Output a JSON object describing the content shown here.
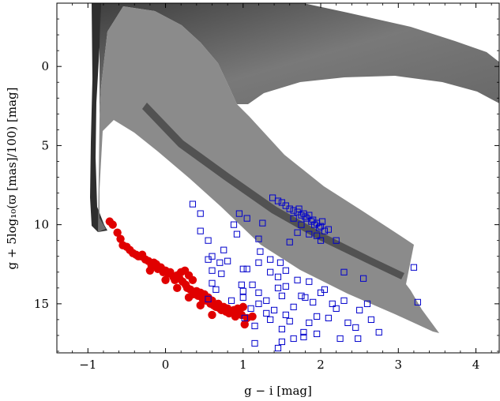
{
  "chart_data": {
    "type": "scatter",
    "xlabel": "g − i [mag]",
    "ylabel": "g + 5log₁₀(ϖ [mas]/100) [mag]",
    "xlim": [
      -1.4,
      4.3
    ],
    "ylim": [
      18.1,
      -4.0
    ],
    "y_inverted": true,
    "xticks": [
      -1,
      0,
      1,
      2,
      3,
      4
    ],
    "xtick_labels": [
      "−1",
      "0",
      "1",
      "2",
      "3",
      "4"
    ],
    "yticks": [
      0,
      5,
      10,
      15
    ],
    "ytick_labels": [
      "0",
      "5",
      "10",
      "15"
    ],
    "grid": false,
    "legend": "none",
    "colors": {
      "red_points": "#e00000",
      "blue_squares": "#0000cc",
      "background_band": "#555555"
    },
    "series": [
      {
        "marker": "filled-circle",
        "points": [
          [
            -0.72,
            9.8
          ],
          [
            -0.68,
            10.0
          ],
          [
            -0.62,
            10.5
          ],
          [
            -0.58,
            10.9
          ],
          [
            -0.55,
            11.3
          ],
          [
            -0.5,
            11.4
          ],
          [
            -0.46,
            11.6
          ],
          [
            -0.42,
            11.8
          ],
          [
            -0.38,
            11.9
          ],
          [
            -0.35,
            12.0
          ],
          [
            -0.32,
            12.0
          ],
          [
            -0.3,
            11.9
          ],
          [
            -0.26,
            12.2
          ],
          [
            -0.22,
            12.3
          ],
          [
            -0.18,
            12.6
          ],
          [
            -0.15,
            12.4
          ],
          [
            -0.12,
            12.5
          ],
          [
            -0.1,
            12.8
          ],
          [
            -0.06,
            12.7
          ],
          [
            -0.03,
            13.0
          ],
          [
            0.0,
            12.9
          ],
          [
            0.03,
            13.1
          ],
          [
            0.06,
            13.0
          ],
          [
            0.1,
            13.3
          ],
          [
            0.12,
            13.5
          ],
          [
            0.15,
            13.2
          ],
          [
            0.18,
            13.4
          ],
          [
            0.2,
            13.0
          ],
          [
            0.22,
            13.6
          ],
          [
            0.25,
            12.9
          ],
          [
            0.26,
            13.8
          ],
          [
            0.28,
            14.0
          ],
          [
            0.3,
            13.2
          ],
          [
            0.32,
            14.1
          ],
          [
            0.35,
            13.5
          ],
          [
            0.36,
            14.4
          ],
          [
            0.4,
            14.2
          ],
          [
            0.42,
            14.5
          ],
          [
            0.45,
            14.3
          ],
          [
            0.48,
            14.7
          ],
          [
            0.5,
            14.4
          ],
          [
            0.52,
            14.8
          ],
          [
            0.55,
            14.6
          ],
          [
            0.58,
            15.0
          ],
          [
            0.6,
            14.8
          ],
          [
            0.62,
            15.1
          ],
          [
            0.65,
            15.2
          ],
          [
            0.68,
            15.0
          ],
          [
            0.7,
            15.3
          ],
          [
            0.72,
            15.4
          ],
          [
            0.75,
            15.2
          ],
          [
            0.78,
            15.5
          ],
          [
            0.8,
            15.3
          ],
          [
            0.82,
            15.6
          ],
          [
            0.85,
            15.5
          ],
          [
            0.88,
            15.4
          ],
          [
            0.9,
            15.8
          ],
          [
            0.93,
            15.3
          ],
          [
            0.95,
            15.6
          ],
          [
            0.98,
            15.7
          ],
          [
            1.0,
            15.2
          ],
          [
            1.02,
            16.3
          ],
          [
            1.05,
            15.9
          ],
          [
            1.12,
            15.8
          ],
          [
            0.6,
            15.7
          ],
          [
            0.45,
            15.1
          ],
          [
            0.3,
            14.6
          ],
          [
            0.15,
            14.0
          ],
          [
            0.0,
            13.5
          ],
          [
            -0.2,
            12.9
          ]
        ]
      },
      {
        "marker": "open-square",
        "points": [
          [
            1.38,
            8.3
          ],
          [
            1.45,
            8.5
          ],
          [
            1.5,
            8.6
          ],
          [
            1.55,
            8.8
          ],
          [
            1.6,
            9.0
          ],
          [
            1.65,
            9.1
          ],
          [
            1.7,
            9.2
          ],
          [
            1.72,
            9.0
          ],
          [
            1.75,
            9.4
          ],
          [
            1.78,
            9.3
          ],
          [
            1.8,
            9.5
          ],
          [
            1.82,
            9.6
          ],
          [
            1.85,
            9.4
          ],
          [
            1.88,
            9.8
          ],
          [
            1.9,
            9.7
          ],
          [
            1.92,
            10.0
          ],
          [
            1.95,
            9.9
          ],
          [
            1.98,
            10.2
          ],
          [
            2.0,
            10.1
          ],
          [
            2.02,
            9.8
          ],
          [
            2.05,
            10.4
          ],
          [
            1.7,
            10.5
          ],
          [
            1.85,
            10.6
          ],
          [
            2.1,
            10.3
          ],
          [
            1.65,
            9.6
          ],
          [
            1.95,
            10.7
          ],
          [
            1.6,
            11.1
          ],
          [
            2.0,
            11.0
          ],
          [
            2.2,
            11.0
          ],
          [
            1.75,
            10.0
          ],
          [
            0.35,
            8.7
          ],
          [
            0.45,
            9.3
          ],
          [
            0.95,
            9.3
          ],
          [
            1.05,
            9.6
          ],
          [
            0.88,
            10.0
          ],
          [
            1.25,
            9.9
          ],
          [
            0.45,
            10.4
          ],
          [
            0.92,
            10.6
          ],
          [
            1.2,
            10.9
          ],
          [
            0.55,
            11.0
          ],
          [
            0.75,
            11.6
          ],
          [
            1.22,
            11.7
          ],
          [
            0.6,
            12.0
          ],
          [
            1.35,
            12.2
          ],
          [
            0.55,
            12.2
          ],
          [
            0.7,
            12.4
          ],
          [
            1.2,
            12.4
          ],
          [
            0.8,
            12.3
          ],
          [
            1.48,
            12.4
          ],
          [
            1.0,
            12.8
          ],
          [
            1.05,
            12.8
          ],
          [
            0.6,
            12.9
          ],
          [
            1.35,
            13.0
          ],
          [
            2.3,
            13.0
          ],
          [
            1.45,
            13.3
          ],
          [
            1.85,
            13.6
          ],
          [
            0.6,
            13.7
          ],
          [
            1.12,
            13.8
          ],
          [
            1.55,
            13.9
          ],
          [
            1.7,
            13.5
          ],
          [
            2.55,
            13.4
          ],
          [
            0.65,
            14.1
          ],
          [
            1.0,
            14.2
          ],
          [
            1.2,
            14.3
          ],
          [
            1.45,
            14.0
          ],
          [
            2.0,
            14.3
          ],
          [
            2.05,
            14.1
          ],
          [
            1.8,
            14.6
          ],
          [
            0.55,
            14.7
          ],
          [
            0.85,
            14.8
          ],
          [
            1.0,
            14.6
          ],
          [
            1.3,
            14.8
          ],
          [
            1.5,
            14.5
          ],
          [
            1.9,
            14.9
          ],
          [
            2.3,
            14.8
          ],
          [
            2.6,
            15.0
          ],
          [
            3.25,
            14.9
          ],
          [
            1.1,
            15.3
          ],
          [
            1.65,
            15.2
          ],
          [
            2.2,
            15.3
          ],
          [
            2.5,
            15.4
          ],
          [
            1.3,
            15.6
          ],
          [
            1.55,
            15.7
          ],
          [
            1.95,
            15.8
          ],
          [
            2.1,
            15.9
          ],
          [
            1.35,
            16.0
          ],
          [
            1.6,
            16.1
          ],
          [
            1.85,
            16.2
          ],
          [
            2.45,
            16.5
          ],
          [
            2.65,
            16.0
          ],
          [
            1.15,
            16.4
          ],
          [
            1.5,
            16.6
          ],
          [
            1.78,
            16.8
          ],
          [
            2.75,
            16.8
          ],
          [
            2.25,
            17.2
          ],
          [
            1.5,
            17.4
          ],
          [
            1.65,
            17.2
          ],
          [
            2.48,
            17.2
          ],
          [
            1.15,
            17.5
          ],
          [
            1.45,
            17.8
          ],
          [
            1.78,
            17.1
          ],
          [
            1.95,
            16.9
          ],
          [
            1.4,
            15.4
          ],
          [
            1.2,
            15.0
          ],
          [
            0.98,
            13.8
          ],
          [
            0.72,
            13.1
          ],
          [
            1.55,
            12.9
          ],
          [
            1.75,
            14.5
          ],
          [
            2.15,
            15.0
          ],
          [
            2.35,
            16.2
          ],
          [
            1.02,
            15.9
          ],
          [
            3.2,
            12.7
          ]
        ]
      }
    ]
  }
}
